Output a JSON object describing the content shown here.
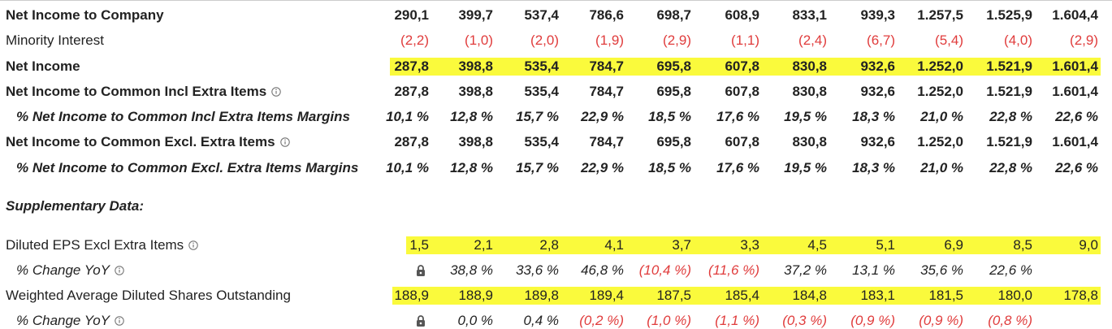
{
  "main_rows": [
    {
      "label": "Net Income to Company",
      "cells": [
        "290,1",
        "399,7",
        "537,4",
        "786,6",
        "698,7",
        "608,9",
        "833,1",
        "939,3",
        "1.257,5",
        "1.525,9",
        "1.604,4"
      ]
    },
    {
      "label": "Minority Interest",
      "cells": [
        "(2,2)",
        "(1,0)",
        "(2,0)",
        "(1,9)",
        "(2,9)",
        "(1,1)",
        "(2,4)",
        "(6,7)",
        "(5,4)",
        "(4,0)",
        "(2,9)"
      ]
    },
    {
      "label": "Net Income",
      "cells": [
        "287,8",
        "398,8",
        "535,4",
        "784,7",
        "695,8",
        "607,8",
        "830,8",
        "932,6",
        "1.252,0",
        "1.521,9",
        "1.601,4"
      ]
    },
    {
      "label": "Net Income to Common Incl Extra Items",
      "cells": [
        "287,8",
        "398,8",
        "535,4",
        "784,7",
        "695,8",
        "607,8",
        "830,8",
        "932,6",
        "1.252,0",
        "1.521,9",
        "1.601,4"
      ]
    },
    {
      "label": "% Net Income to Common Incl Extra Items Margins",
      "cells": [
        "10,1 %",
        "12,8 %",
        "15,7 %",
        "22,9 %",
        "18,5 %",
        "17,6 %",
        "19,5 %",
        "18,3 %",
        "21,0 %",
        "22,8 %",
        "22,6 %"
      ]
    },
    {
      "label": "Net Income to Common Excl. Extra Items",
      "cells": [
        "287,8",
        "398,8",
        "535,4",
        "784,7",
        "695,8",
        "607,8",
        "830,8",
        "932,6",
        "1.252,0",
        "1.521,9",
        "1.601,4"
      ]
    },
    {
      "label": "% Net Income to Common Excl. Extra Items Margins",
      "cells": [
        "10,1 %",
        "12,8 %",
        "15,7 %",
        "22,9 %",
        "18,5 %",
        "17,6 %",
        "19,5 %",
        "18,3 %",
        "21,0 %",
        "22,8 %",
        "22,6 %"
      ]
    }
  ],
  "supplementary": {
    "title": "Supplementary Data:",
    "rows": [
      {
        "label": "Diluted EPS Excl Extra Items",
        "cells": [
          "1,5",
          "2,1",
          "2,8",
          "4,1",
          "3,7",
          "3,3",
          "4,5",
          "5,1",
          "6,9",
          "8,5",
          "9,0"
        ]
      },
      {
        "label": "% Change YoY",
        "cells": [
          null,
          "38,8 %",
          "33,6 %",
          "46,8 %",
          "(10,4 %)",
          "(11,6 %)",
          "37,2 %",
          "13,1 %",
          "35,6 %",
          "22,6 %",
          null
        ]
      },
      {
        "label": "Weighted Average Diluted Shares Outstanding",
        "cells": [
          "188,9",
          "188,9",
          "189,8",
          "189,4",
          "187,5",
          "185,4",
          "184,8",
          "183,1",
          "181,5",
          "180,0",
          "178,8"
        ]
      },
      {
        "label": "% Change YoY",
        "cells": [
          null,
          "0,0 %",
          "0,4 %",
          "(0,2 %)",
          "(1,0 %)",
          "(1,1 %)",
          "(0,3 %)",
          "(0,9 %)",
          "(0,9 %)",
          "(0,8 %)",
          null
        ]
      }
    ]
  }
}
